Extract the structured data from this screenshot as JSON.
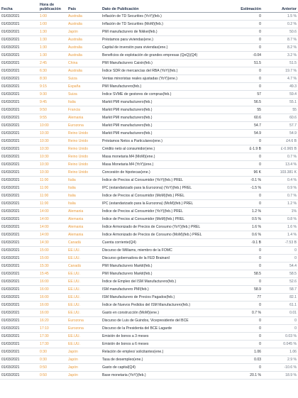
{
  "headers": {
    "date": "Fecha",
    "time": "Hora de publicación",
    "country": "País",
    "event": "Dato de Publicación",
    "estimate": "Estimación",
    "previous": "Anterior"
  },
  "colors": {
    "time": "#e89a3c",
    "country": "#e89a3c",
    "header": "#1f2f4a"
  },
  "rows": [
    {
      "date": "01/03/2021",
      "time": "1:00",
      "country": "Australia",
      "event": "Inflación de TD Securities (YoY)(feb.)",
      "estimate": "0",
      "previous": "1.5 %"
    },
    {
      "date": "01/03/2021",
      "time": "1:00",
      "country": "Australia",
      "event": "Inflación de TD Securities (MoM)(feb.)",
      "estimate": "0",
      "previous": "0.2 %"
    },
    {
      "date": "01/03/2021",
      "time": "1:30",
      "country": "Japón",
      "event": "PMI manufacturero de Nikkei(feb.)",
      "estimate": "0",
      "previous": "50.6"
    },
    {
      "date": "01/03/2021",
      "time": "1:30",
      "country": "Australia",
      "event": "Préstamos para viviendas(ene.)",
      "estimate": "0",
      "previous": "8.7 %"
    },
    {
      "date": "01/03/2021",
      "time": "1:30",
      "country": "Australia",
      "event": "Capital de inversión para viviendas(ene.)",
      "estimate": "0",
      "previous": "8.2 %"
    },
    {
      "date": "01/03/2021",
      "time": "1:30",
      "country": "Australia",
      "event": "Beneficios de explotación de grandes empresas (QoQ)(Q4)",
      "estimate": "-0.04",
      "previous": "3.2 %"
    },
    {
      "date": "01/03/2021",
      "time": "2:45",
      "country": "China",
      "event": "PMI Manufacturero Caixin(feb.)",
      "estimate": "51.5",
      "previous": "51.5"
    },
    {
      "date": "01/03/2021",
      "time": "6:30",
      "country": "Australia",
      "event": "Índice SDR de mercancías del RBA (YoY)(feb.)",
      "estimate": "0",
      "previous": "19.7 %"
    },
    {
      "date": "01/03/2021",
      "time": "8:30",
      "country": "Suiza",
      "event": "Ventas minoristas reales ajustadas (YoY)(ene.)",
      "estimate": "0",
      "previous": "4.7 %"
    },
    {
      "date": "01/03/2021",
      "time": "9:15",
      "country": "España",
      "event": "PMI Manufacturero(feb.)",
      "estimate": "0",
      "previous": "49.3"
    },
    {
      "date": "01/03/2021",
      "time": "9:30",
      "country": "Suiza",
      "event": "Índice SVME de gestores de compras(feb.)",
      "estimate": "57",
      "previous": "59.4"
    },
    {
      "date": "01/03/2021",
      "time": "9:45",
      "country": "Italia",
      "event": "Markit PMI manufacturero(feb.)",
      "estimate": "56.5",
      "previous": "55.1"
    },
    {
      "date": "01/03/2021",
      "time": "9:50",
      "country": "Francia",
      "event": "Markit PMI manufacturero(feb.)",
      "estimate": "55",
      "previous": "55"
    },
    {
      "date": "01/03/2021",
      "time": "9:55",
      "country": "Alemania",
      "event": "Markit PMI manufacturero(feb.)",
      "estimate": "60.6",
      "previous": "60.6"
    },
    {
      "date": "01/03/2021",
      "time": "10:00",
      "country": "Eurozona",
      "event": "Markit PMI manufacturero(feb.)",
      "estimate": "54.7",
      "previous": "57.7"
    },
    {
      "date": "01/03/2021",
      "time": "10:30",
      "country": "Reino Unido",
      "event": "Markit PMI manufacturero(feb.)",
      "estimate": "54.9",
      "previous": "54.9"
    },
    {
      "date": "01/03/2021",
      "time": "10:30",
      "country": "Reino Unido",
      "event": "Préstamos Netos a Particulares(ene.)",
      "estimate": "0",
      "previous": "£4.6 B"
    },
    {
      "date": "01/03/2021",
      "time": "10:30",
      "country": "Reino Unido",
      "event": "Crédito neto al consumidor(ene.)",
      "estimate": "£-1.9 B",
      "previous": "£-0.965 B"
    },
    {
      "date": "01/03/2021",
      "time": "10:30",
      "country": "Reino Unido",
      "event": "Masa monetaria M4 (MoM)(ene.)",
      "estimate": "0",
      "previous": "0.7 %"
    },
    {
      "date": "01/03/2021",
      "time": "10:30",
      "country": "Reino Unido",
      "event": "Masa Monetaria M4 (YoY)(ene.)",
      "estimate": "0",
      "previous": "13.4 %"
    },
    {
      "date": "01/03/2021",
      "time": "10:30",
      "country": "Reino Unido",
      "event": "Concesión de hipotecas(ene.)",
      "estimate": "96 K",
      "previous": "103.381 K"
    },
    {
      "date": "01/03/2021",
      "time": "11:00",
      "country": "Italia",
      "event": "Índice de Precios al Consumidor (YoY)(feb.) PREL",
      "estimate": "-0.1 %",
      "previous": "0.4 %"
    },
    {
      "date": "01/03/2021",
      "time": "11:00",
      "country": "Italia",
      "event": "IPC (estandarizado para la Eurozona) (YoY)(feb.) PREL",
      "estimate": "-1.5 %",
      "previous": "0.9 %"
    },
    {
      "date": "01/03/2021",
      "time": "11:00",
      "country": "Italia",
      "event": "Índice de Precios al Consumidor (MoM)(feb.) PREL",
      "estimate": "0",
      "previous": "0.7 %"
    },
    {
      "date": "01/03/2021",
      "time": "11:00",
      "country": "Italia",
      "event": "IPC (estandarizado para la Eurozona) (MoM)(feb.) PREL",
      "estimate": "0",
      "previous": "1.2 %"
    },
    {
      "date": "01/03/2021",
      "time": "14:00",
      "country": "Alemania",
      "event": "Índice de Precios al Consumidor (YoY)(feb.) PREL",
      "estimate": "1.2 %",
      "previous": "1%"
    },
    {
      "date": "01/03/2021",
      "time": "14:00",
      "country": "Alemania",
      "event": "Índice de Precios al Consumidor (MoM)(feb.) PREL",
      "estimate": "0.5 %",
      "previous": "0.8 %"
    },
    {
      "date": "01/03/2021",
      "time": "14:00",
      "country": "Alemania",
      "event": "Índice Armonizado de Precios de Consumo (YoY)(feb.) PREL",
      "estimate": "1.6 %",
      "previous": "1.6 %"
    },
    {
      "date": "01/03/2021",
      "time": "14:00",
      "country": "Alemania",
      "event": "Índice Armonizado de Precios de Consumo (MoM)(feb.) PREL",
      "estimate": "0.6 %",
      "previous": "1.4 %"
    },
    {
      "date": "01/03/2021",
      "time": "14:30",
      "country": "Canadá",
      "event": "Cuenta corriente(Q4)",
      "estimate": "-9.1 B",
      "previous": "-7.53 B"
    },
    {
      "date": "01/03/2021",
      "time": "15:00",
      "country": "EE.UU.",
      "event": "Discurso de Williams, miembro de la FOMC",
      "estimate": "0",
      "previous": "0"
    },
    {
      "date": "01/03/2021",
      "time": "15:00",
      "country": "EE.UU.",
      "event": "Discurso gobernadora de la FED Brainard",
      "estimate": "0",
      "previous": "0"
    },
    {
      "date": "01/03/2021",
      "time": "15:30",
      "country": "Canadá",
      "event": "PMI Manufacturero Markit(feb.)",
      "estimate": "0",
      "previous": "54.4"
    },
    {
      "date": "01/03/2021",
      "time": "15:45",
      "country": "EE.UU.",
      "event": "PMI Manufacturero Markit(feb.)",
      "estimate": "58.5",
      "previous": "58.5"
    },
    {
      "date": "01/03/2021",
      "time": "16:00",
      "country": "EE.UU.",
      "event": "Índice de Empleo del ISM Manufacturero(feb.)",
      "estimate": "0",
      "previous": "52.6"
    },
    {
      "date": "01/03/2021",
      "time": "16:00",
      "country": "EE.UU.",
      "event": "ISM manufacturero PMI(feb.)",
      "estimate": "58.9",
      "previous": "58.7"
    },
    {
      "date": "01/03/2021",
      "time": "16:00",
      "country": "EE.UU.",
      "event": "ISM Manufacturero de Precios Pagados(feb.)",
      "estimate": "77",
      "previous": "82.1"
    },
    {
      "date": "01/03/2021",
      "time": "16:00",
      "country": "EE.UU.",
      "event": "Índice de Nuevos Pedidos del ISM Manufacturero(feb.)",
      "estimate": "0",
      "previous": "61.1"
    },
    {
      "date": "01/03/2021",
      "time": "16:00",
      "country": "EE.UU.",
      "event": "Gasto en construcción (MoM)(ene.)",
      "estimate": "0.7 %",
      "previous": "0.01"
    },
    {
      "date": "01/03/2021",
      "time": "16:20",
      "country": "Eurozona",
      "event": "Discurso de Luis de Guindos, Vicepresidente del BCE",
      "estimate": "0",
      "previous": "0"
    },
    {
      "date": "01/03/2021",
      "time": "17:10",
      "country": "Eurozona",
      "event": "Discurso de la Presidenta del BCE Lagarde",
      "estimate": "0",
      "previous": "0"
    },
    {
      "date": "01/03/2021",
      "time": "17:30",
      "country": "EE.UU.",
      "event": "Emisión de bonos a 3 meses",
      "estimate": "0",
      "previous": "0.03 %"
    },
    {
      "date": "01/03/2021",
      "time": "17:30",
      "country": "EE.UU.",
      "event": "Emisión de bonos a 6 meses",
      "estimate": "0",
      "previous": "0.045 %"
    },
    {
      "date": "01/03/2021",
      "time": "0:30",
      "country": "Japón",
      "event": "Relación de empleo/ solicitantes(ene.)",
      "estimate": "1.06",
      "previous": "1.06"
    },
    {
      "date": "01/03/2021",
      "time": "0:30",
      "country": "Japón",
      "event": "Tasa de desempleo(ene.)",
      "estimate": "0.03",
      "previous": "2.9 %"
    },
    {
      "date": "01/03/2021",
      "time": "0:50",
      "country": "Japón",
      "event": "Gasto de capital(Q4)",
      "estimate": "0",
      "previous": "-10.6 %"
    },
    {
      "date": "01/03/2021",
      "time": "0:50",
      "country": "Japón",
      "event": "Base monetaria (YoY)(feb.)",
      "estimate": "20.1 %",
      "previous": "18.9 %"
    }
  ]
}
